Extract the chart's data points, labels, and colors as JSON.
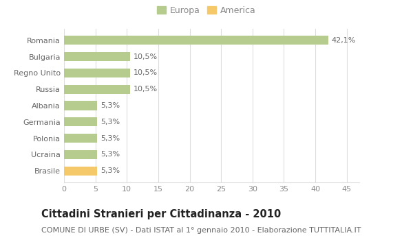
{
  "categories": [
    "Brasile",
    "Ucraina",
    "Polonia",
    "Germania",
    "Albania",
    "Russia",
    "Regno Unito",
    "Bulgaria",
    "Romania"
  ],
  "values": [
    5.3,
    5.3,
    5.3,
    5.3,
    5.3,
    10.5,
    10.5,
    10.5,
    42.1
  ],
  "labels": [
    "5,3%",
    "5,3%",
    "5,3%",
    "5,3%",
    "5,3%",
    "10,5%",
    "10,5%",
    "10,5%",
    "42,1%"
  ],
  "colors": [
    "#f5c96a",
    "#b5cc8e",
    "#b5cc8e",
    "#b5cc8e",
    "#b5cc8e",
    "#b5cc8e",
    "#b5cc8e",
    "#b5cc8e",
    "#b5cc8e"
  ],
  "europa_color": "#b5cc8e",
  "america_color": "#f5c96a",
  "xlim": [
    0,
    47
  ],
  "xticks": [
    0,
    5,
    10,
    15,
    20,
    25,
    30,
    35,
    40,
    45
  ],
  "title": "Cittadini Stranieri per Cittadinanza - 2010",
  "subtitle": "COMUNE DI URBE (SV) - Dati ISTAT al 1° gennaio 2010 - Elaborazione TUTTITALIA.IT",
  "legend_europa": "Europa",
  "legend_america": "America",
  "background_color": "#ffffff",
  "grid_color": "#dddddd",
  "bar_edge_color": "none",
  "title_fontsize": 10.5,
  "subtitle_fontsize": 8,
  "tick_fontsize": 8,
  "label_fontsize": 8
}
